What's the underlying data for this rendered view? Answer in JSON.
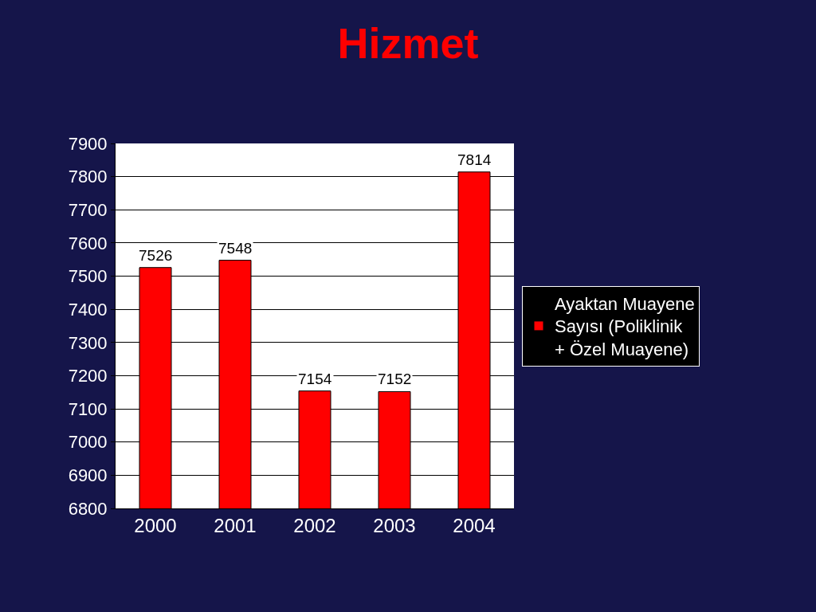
{
  "chart_data": {
    "type": "bar",
    "title": "Hizmet",
    "categories": [
      "2000",
      "2001",
      "2002",
      "2003",
      "2004"
    ],
    "series": [
      {
        "name": "Ayaktan Muayene Sayısı (Poliklinik + Özel Muayene)",
        "color": "#ff0000",
        "values": [
          7526,
          7548,
          7154,
          7152,
          7814
        ]
      }
    ],
    "data_labels": true,
    "ylim": [
      6800,
      7900
    ],
    "yticks": [
      6800,
      6900,
      7000,
      7100,
      7200,
      7300,
      7400,
      7500,
      7600,
      7700,
      7800,
      7900
    ],
    "grid": "y",
    "legend": "right"
  }
}
